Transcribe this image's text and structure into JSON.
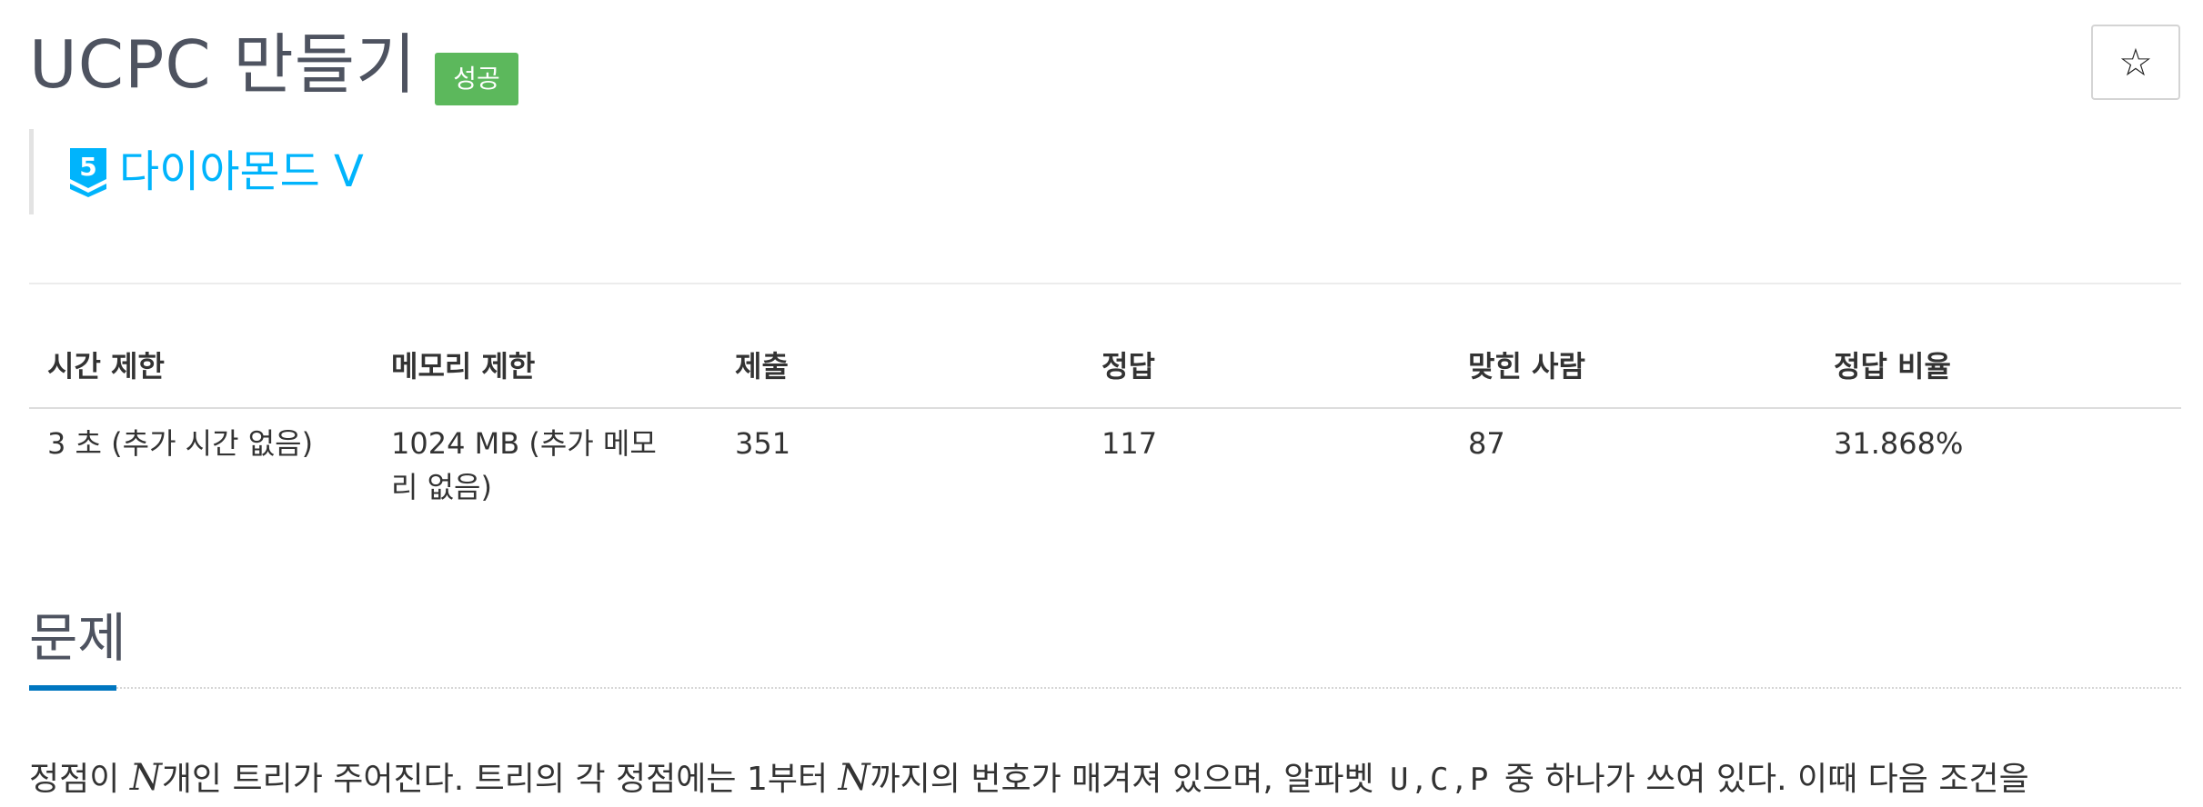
{
  "problem": {
    "title": "UCPC 만들기",
    "status_badge": "성공",
    "star_icon": "☆",
    "tier": {
      "number": "5",
      "label": "다이아몬드 V",
      "color": "#00b4fc"
    }
  },
  "info_table": {
    "headers": [
      "시간 제한",
      "메모리 제한",
      "제출",
      "정답",
      "맞힌 사람",
      "정답 비율"
    ],
    "values": [
      "3 초 (추가 시간 없음)",
      "1024 MB (추가 메모리 없음)",
      "351",
      "117",
      "87",
      "31.868%"
    ]
  },
  "section": {
    "title": "문제"
  },
  "description": {
    "p1": "정점이 ",
    "var_n": "N",
    "p2": "개인 트리가 주어진다. 트리의 각 정점에는 1부터 ",
    "var_n2": "N",
    "p3": "까지의 번호가 매겨져 있으며, 알파벳 ",
    "letter_u": "U",
    "sep1": ",",
    "letter_c": "C",
    "sep2": ",",
    "letter_p": "P",
    "p4": " 중 하나가 쓰여 있다. 이때 다음 조건을"
  },
  "colors": {
    "success": "#5cb85c",
    "tier": "#00b4fc",
    "accent": "#0076c0"
  }
}
